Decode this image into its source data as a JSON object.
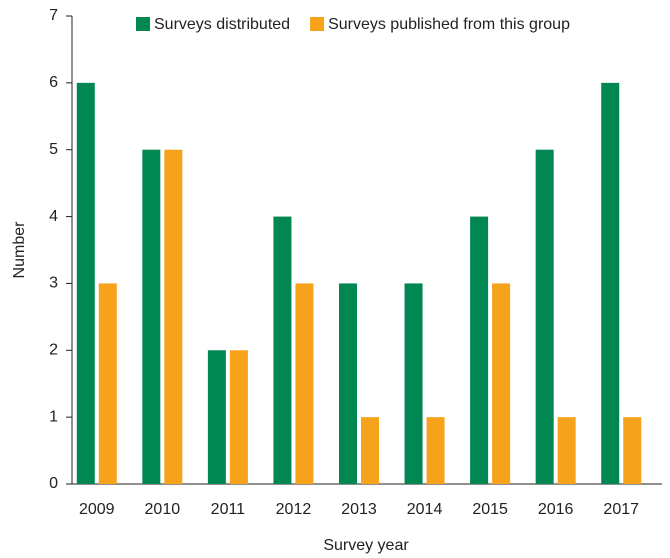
{
  "chart_data": {
    "type": "bar",
    "xlabel": "Survey year",
    "ylabel": "Number",
    "categories": [
      "2009",
      "2010",
      "2011",
      "2012",
      "2013",
      "2014",
      "2015",
      "2016",
      "2017"
    ],
    "series": [
      {
        "name": "Surveys distributed",
        "color": "#008752",
        "values": [
          6,
          5,
          2,
          4,
          3,
          3,
          4,
          5,
          6
        ]
      },
      {
        "name": "Surveys published from this group",
        "color": "#f7a21b",
        "values": [
          3,
          5,
          2,
          3,
          1,
          1,
          3,
          1,
          1
        ]
      }
    ],
    "ylim": [
      0,
      7
    ],
    "yticks": [
      0,
      1,
      2,
      3,
      4,
      5,
      6,
      7
    ],
    "grid": false,
    "legend": "top"
  }
}
